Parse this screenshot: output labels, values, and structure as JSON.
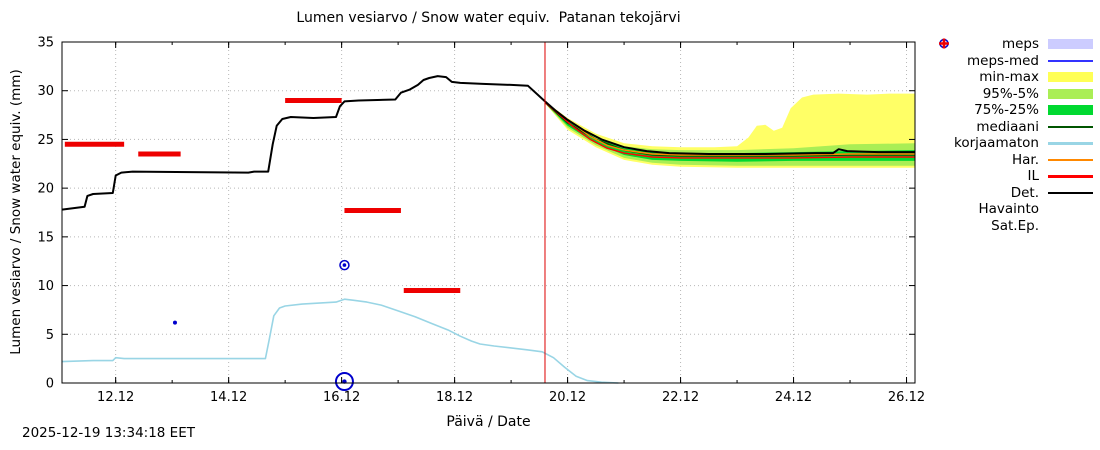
{
  "header": {
    "title": "Lumen vesiarvo / Snow water equiv.  Patanan tekojärvi"
  },
  "axes": {
    "ylabel": "Lumen vesiarvo / Snow water equiv. (mm)",
    "xlabel": "Päivä / Date"
  },
  "footer": {
    "timestamp": "2025-12-19 13:34:18 EET"
  },
  "chart_data": {
    "type": "line",
    "title": "Lumen vesiarvo / Snow water equiv.  Patanan tekojärvi",
    "xlabel": "Päivä / Date",
    "ylabel": "Lumen vesiarvo / Snow water equiv. (mm)",
    "x_domain": [
      11.05,
      26.15
    ],
    "y_domain": [
      0,
      35
    ],
    "grid": true,
    "forecast_start_x": 19.6,
    "forecast_line_color": "#dd0000",
    "x_ticks": [
      {
        "v": 12,
        "label": "12.12"
      },
      {
        "v": 14,
        "label": "14.12"
      },
      {
        "v": 16,
        "label": "16.12"
      },
      {
        "v": 18,
        "label": "18.12"
      },
      {
        "v": 20,
        "label": "20.12"
      },
      {
        "v": 22,
        "label": "22.12"
      },
      {
        "v": 24,
        "label": "24.12"
      },
      {
        "v": 26,
        "label": "26.12"
      }
    ],
    "y_ticks": [
      {
        "v": 0,
        "label": "0"
      },
      {
        "v": 5,
        "label": "5"
      },
      {
        "v": 10,
        "label": "10"
      },
      {
        "v": 15,
        "label": "15"
      },
      {
        "v": 20,
        "label": "20"
      },
      {
        "v": 25,
        "label": "25"
      },
      {
        "v": 30,
        "label": "30"
      },
      {
        "v": 35,
        "label": "35"
      }
    ],
    "bands": [
      {
        "name": "min-max",
        "color": "#ffff66",
        "upper": [
          [
            19.6,
            28.9
          ],
          [
            20.0,
            27.2
          ],
          [
            20.5,
            25.6
          ],
          [
            21.0,
            24.6
          ],
          [
            21.5,
            24.3
          ],
          [
            22.0,
            24.2
          ],
          [
            22.6,
            24.2
          ],
          [
            23.0,
            24.3
          ],
          [
            23.2,
            25.2
          ],
          [
            23.35,
            26.4
          ],
          [
            23.5,
            26.5
          ],
          [
            23.65,
            25.9
          ],
          [
            23.8,
            26.2
          ],
          [
            23.95,
            28.2
          ],
          [
            24.15,
            29.3
          ],
          [
            24.35,
            29.6
          ],
          [
            24.8,
            29.7
          ],
          [
            25.3,
            29.6
          ],
          [
            25.7,
            29.7
          ],
          [
            26.15,
            29.7
          ]
        ],
        "lower": [
          [
            19.6,
            28.7
          ],
          [
            20.0,
            26.0
          ],
          [
            20.5,
            24.2
          ],
          [
            21.0,
            22.9
          ],
          [
            21.5,
            22.4
          ],
          [
            22.0,
            22.2
          ],
          [
            23.0,
            22.1
          ],
          [
            24.0,
            22.1
          ],
          [
            25.0,
            22.1
          ],
          [
            26.15,
            22.1
          ]
        ]
      },
      {
        "name": "95%-5%",
        "color": "#aaee55",
        "upper": [
          [
            19.6,
            28.9
          ],
          [
            20.0,
            27.0
          ],
          [
            20.5,
            25.3
          ],
          [
            21.0,
            24.3
          ],
          [
            21.5,
            24.0
          ],
          [
            22.0,
            23.9
          ],
          [
            23.0,
            23.9
          ],
          [
            24.0,
            24.1
          ],
          [
            25.0,
            24.5
          ],
          [
            26.15,
            24.6
          ]
        ],
        "lower": [
          [
            19.6,
            28.7
          ],
          [
            20.0,
            26.2
          ],
          [
            20.5,
            24.4
          ],
          [
            21.0,
            23.1
          ],
          [
            21.5,
            22.6
          ],
          [
            22.0,
            22.4
          ],
          [
            23.0,
            22.3
          ],
          [
            24.0,
            22.3
          ],
          [
            25.0,
            22.3
          ],
          [
            26.15,
            22.3
          ]
        ]
      },
      {
        "name": "75%-25%",
        "color": "#00d930",
        "upper": [
          [
            19.6,
            28.85
          ],
          [
            20.0,
            26.9
          ],
          [
            20.5,
            25.1
          ],
          [
            21.0,
            24.1
          ],
          [
            21.5,
            23.7
          ],
          [
            22.0,
            23.6
          ],
          [
            23.0,
            23.6
          ],
          [
            24.0,
            23.7
          ],
          [
            25.0,
            23.8
          ],
          [
            26.15,
            23.9
          ]
        ],
        "lower": [
          [
            19.6,
            28.75
          ],
          [
            20.0,
            26.4
          ],
          [
            20.5,
            24.6
          ],
          [
            21.0,
            23.4
          ],
          [
            21.5,
            22.9
          ],
          [
            22.0,
            22.8
          ],
          [
            23.0,
            22.7
          ],
          [
            24.0,
            22.8
          ],
          [
            25.0,
            22.8
          ],
          [
            26.15,
            22.8
          ]
        ]
      }
    ],
    "series": [
      {
        "name": "mediaani",
        "color": "#005500",
        "width": 1.6,
        "points": [
          [
            19.6,
            28.8
          ],
          [
            20.0,
            26.7
          ],
          [
            20.5,
            25.0
          ],
          [
            21.0,
            23.9
          ],
          [
            21.5,
            23.4
          ],
          [
            22.0,
            23.3
          ],
          [
            23.0,
            23.3
          ],
          [
            24.0,
            23.3
          ],
          [
            25.0,
            23.4
          ],
          [
            26.15,
            23.4
          ]
        ]
      },
      {
        "name": "Har.",
        "color": "#ff8800",
        "width": 1.4,
        "points": [
          [
            19.6,
            28.8
          ],
          [
            19.9,
            27.5
          ],
          [
            20.1,
            26.6
          ],
          [
            20.4,
            25.3
          ],
          [
            20.7,
            24.4
          ],
          [
            21.0,
            23.9
          ],
          [
            21.5,
            23.5
          ],
          [
            22.0,
            23.4
          ],
          [
            23.0,
            23.4
          ],
          [
            24.0,
            23.4
          ],
          [
            25.0,
            23.5
          ],
          [
            26.15,
            23.5
          ]
        ]
      },
      {
        "name": "IL",
        "color": "#ff0000",
        "width": 1.4,
        "points": [
          [
            19.6,
            28.8
          ],
          [
            19.9,
            27.3
          ],
          [
            20.1,
            26.3
          ],
          [
            20.4,
            25.0
          ],
          [
            20.7,
            24.1
          ],
          [
            21.0,
            23.6
          ],
          [
            21.5,
            23.2
          ],
          [
            22.0,
            23.1
          ],
          [
            23.0,
            23.1
          ],
          [
            24.0,
            23.1
          ],
          [
            25.0,
            23.2
          ],
          [
            26.15,
            23.2
          ]
        ]
      },
      {
        "name": "korjaamaton",
        "color": "#99d5e5",
        "width": 1.6,
        "points": [
          [
            11.05,
            2.2
          ],
          [
            11.6,
            2.3
          ],
          [
            11.95,
            2.3
          ],
          [
            12.0,
            2.6
          ],
          [
            12.15,
            2.5
          ],
          [
            13.0,
            2.5
          ],
          [
            14.0,
            2.5
          ],
          [
            14.65,
            2.5
          ],
          [
            14.72,
            4.5
          ],
          [
            14.8,
            6.9
          ],
          [
            14.9,
            7.7
          ],
          [
            15.0,
            7.9
          ],
          [
            15.3,
            8.1
          ],
          [
            15.6,
            8.2
          ],
          [
            15.9,
            8.3
          ],
          [
            16.05,
            8.6
          ],
          [
            16.2,
            8.5
          ],
          [
            16.45,
            8.3
          ],
          [
            16.7,
            8.0
          ],
          [
            17.0,
            7.4
          ],
          [
            17.3,
            6.8
          ],
          [
            17.6,
            6.1
          ],
          [
            17.9,
            5.4
          ],
          [
            18.1,
            4.8
          ],
          [
            18.3,
            4.3
          ],
          [
            18.45,
            4.0
          ],
          [
            18.7,
            3.8
          ],
          [
            19.0,
            3.6
          ],
          [
            19.3,
            3.4
          ],
          [
            19.55,
            3.2
          ],
          [
            19.75,
            2.6
          ],
          [
            19.95,
            1.6
          ],
          [
            20.15,
            0.7
          ],
          [
            20.35,
            0.25
          ],
          [
            20.6,
            0.08
          ],
          [
            20.9,
            0.0
          ]
        ]
      },
      {
        "name": "Det.",
        "color": "#000000",
        "width": 2,
        "points": [
          [
            11.05,
            17.8
          ],
          [
            11.45,
            18.1
          ],
          [
            11.5,
            19.2
          ],
          [
            11.6,
            19.4
          ],
          [
            11.95,
            19.5
          ],
          [
            12.0,
            21.3
          ],
          [
            12.1,
            21.6
          ],
          [
            12.3,
            21.7
          ],
          [
            14.35,
            21.6
          ],
          [
            14.45,
            21.7
          ],
          [
            14.7,
            21.7
          ],
          [
            14.78,
            24.5
          ],
          [
            14.85,
            26.4
          ],
          [
            14.95,
            27.1
          ],
          [
            15.1,
            27.3
          ],
          [
            15.5,
            27.2
          ],
          [
            15.9,
            27.3
          ],
          [
            15.97,
            28.4
          ],
          [
            16.05,
            28.9
          ],
          [
            16.3,
            29.0
          ],
          [
            16.95,
            29.1
          ],
          [
            17.05,
            29.8
          ],
          [
            17.2,
            30.1
          ],
          [
            17.35,
            30.6
          ],
          [
            17.45,
            31.1
          ],
          [
            17.55,
            31.3
          ],
          [
            17.7,
            31.5
          ],
          [
            17.85,
            31.4
          ],
          [
            17.95,
            30.9
          ],
          [
            18.1,
            30.8
          ],
          [
            18.5,
            30.7
          ],
          [
            19.0,
            30.6
          ],
          [
            19.3,
            30.5
          ],
          [
            19.6,
            28.9
          ],
          [
            19.8,
            27.9
          ],
          [
            20.0,
            27.0
          ],
          [
            20.3,
            25.9
          ],
          [
            20.6,
            25.0
          ],
          [
            21.0,
            24.2
          ],
          [
            21.4,
            23.8
          ],
          [
            21.8,
            23.6
          ],
          [
            22.5,
            23.5
          ],
          [
            23.5,
            23.5
          ],
          [
            24.4,
            23.6
          ],
          [
            24.7,
            23.6
          ],
          [
            24.8,
            24.0
          ],
          [
            24.95,
            23.8
          ],
          [
            25.5,
            23.7
          ],
          [
            26.15,
            23.7
          ]
        ]
      }
    ],
    "sat_ep": {
      "color": "#ee0000",
      "segments": [
        {
          "y": 24.5,
          "x1": 11.1,
          "x2": 12.15
        },
        {
          "y": 23.5,
          "x1": 12.4,
          "x2": 13.15
        },
        {
          "y": 29.0,
          "x1": 15.0,
          "x2": 16.0
        },
        {
          "y": 17.7,
          "x1": 16.05,
          "x2": 17.05
        },
        {
          "y": 9.5,
          "x1": 17.1,
          "x2": 18.1
        }
      ]
    },
    "havainto": {
      "color": "#0000cc",
      "markers": [
        {
          "x": 13.05,
          "y": 6.2,
          "style": "dot"
        },
        {
          "x": 16.05,
          "y": 12.1,
          "style": "ring-dot"
        },
        {
          "x": 16.05,
          "y": 0.15,
          "style": "big-ring"
        }
      ]
    }
  },
  "legend": {
    "items": [
      {
        "key": "meps",
        "label": "meps",
        "type": "band",
        "color": "#ccccff"
      },
      {
        "key": "meps-med",
        "label": "meps-med",
        "type": "line",
        "color": "#3333ff"
      },
      {
        "key": "min-max",
        "label": "min-max",
        "type": "band",
        "color": "#ffff55"
      },
      {
        "key": "p95-5",
        "label": "95%-5%",
        "type": "band",
        "color": "#aaee55"
      },
      {
        "key": "p75-25",
        "label": "75%-25%",
        "type": "band",
        "color": "#00d930"
      },
      {
        "key": "mediaani",
        "label": "mediaani",
        "type": "line",
        "color": "#005500"
      },
      {
        "key": "korjaamaton",
        "label": "korjaamaton",
        "type": "line",
        "color": "#99d5e5"
      },
      {
        "key": "har",
        "label": "Har.",
        "type": "line",
        "color": "#ff8800"
      },
      {
        "key": "il",
        "label": "IL",
        "type": "line",
        "color": "#ff0000"
      },
      {
        "key": "det",
        "label": "Det.",
        "type": "line",
        "color": "#000000"
      },
      {
        "key": "havainto",
        "label": "Havainto",
        "type": "marker-circle",
        "color": "#0000cc"
      },
      {
        "key": "satep",
        "label": "Sat.Ep.",
        "type": "marker-plus",
        "color": "#ee0000"
      }
    ]
  }
}
